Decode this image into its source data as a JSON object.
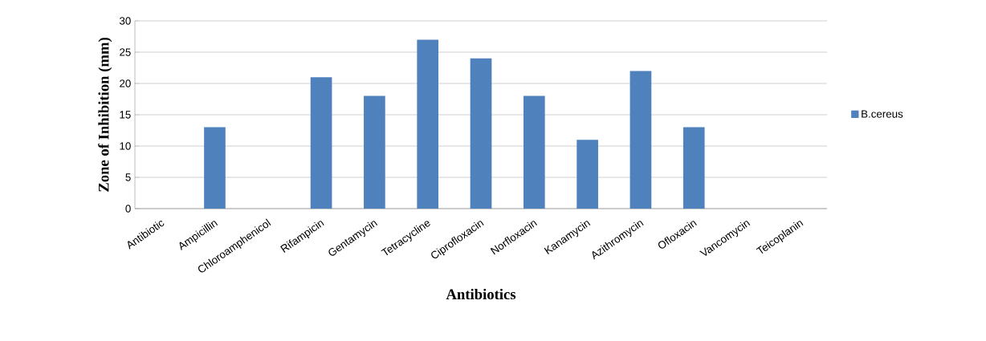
{
  "chart_data": {
    "type": "bar",
    "xlabel": "Antibiotics",
    "ylabel": "Zone of Inhibition (mm)",
    "categories": [
      "Antibiotic",
      "Ampicillin",
      "Chloroamphenicol",
      "Rifampicin",
      "Gentamycin",
      "Tetracycline",
      "Ciprofloxacin",
      "Norfloxacin",
      "Kanamycin",
      "Azithromycin",
      "Ofloxacin",
      "Vancomycin",
      "Teicoplanin"
    ],
    "series": [
      {
        "name": "B.cereus",
        "color": "#4f81bd",
        "values": [
          0,
          13,
          0,
          21,
          18,
          27,
          24,
          18,
          11,
          22,
          13,
          0,
          0
        ]
      }
    ],
    "ylim": [
      0,
      30
    ],
    "yticks": [
      0,
      5,
      10,
      15,
      20,
      25,
      30
    ],
    "grid": "y",
    "legend": "right"
  }
}
